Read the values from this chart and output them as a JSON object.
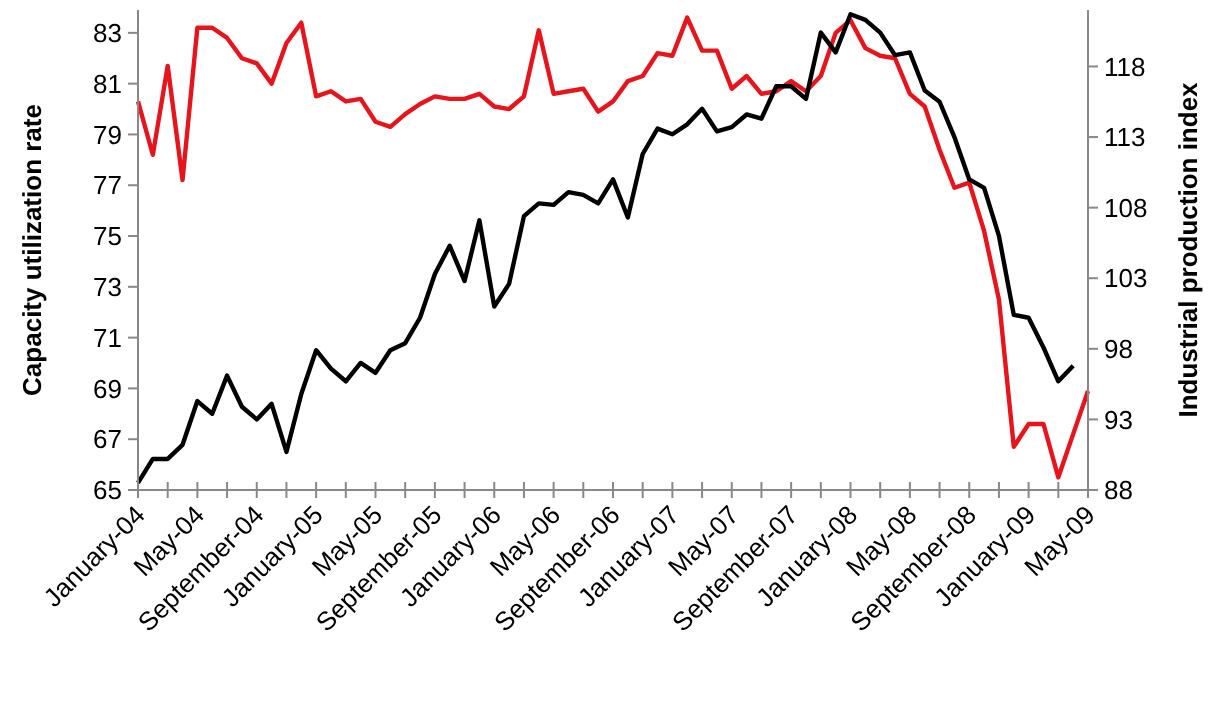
{
  "chart_data": {
    "type": "line",
    "ylabel": "Capacity utilization rate",
    "y2label": "Industrial production index",
    "categories": [
      "January-04",
      null,
      null,
      null,
      "May-04",
      null,
      null,
      null,
      "September-04",
      null,
      null,
      null,
      "January-05",
      null,
      null,
      null,
      "May-05",
      null,
      null,
      null,
      "September-05",
      null,
      null,
      null,
      "January-06",
      null,
      null,
      null,
      "May-06",
      null,
      null,
      null,
      "September-06",
      null,
      null,
      null,
      "January-07",
      null,
      null,
      null,
      "May-07",
      null,
      null,
      null,
      "September-07",
      null,
      null,
      null,
      "January-08",
      null,
      null,
      null,
      "May-08",
      null,
      null,
      null,
      "September-08",
      null,
      null,
      null,
      "January-09",
      null,
      null,
      null,
      "May-09"
    ],
    "series": [
      {
        "color": "#e8141c",
        "values": [
          80.3,
          78.2,
          81.7,
          77.2,
          83.2,
          83.2,
          82.8,
          82.0,
          81.8,
          81.0,
          82.6,
          83.4,
          80.5,
          80.7,
          80.3,
          80.4,
          79.5,
          79.3,
          79.8,
          80.2,
          80.5,
          80.4,
          80.4,
          80.6,
          80.1,
          80.0,
          80.5,
          83.1,
          80.6,
          80.7,
          80.8,
          79.9,
          80.3,
          81.1,
          81.3,
          82.2,
          82.1,
          83.6,
          82.3,
          82.3,
          80.8,
          81.3,
          80.6,
          80.7,
          81.1,
          80.7,
          81.3,
          83.0,
          83.5,
          82.4,
          82.1,
          82.0,
          80.6,
          80.1,
          78.4,
          76.9,
          77.1,
          75.2,
          72.5,
          66.7,
          67.6,
          67.6,
          65.5,
          67.2,
          68.9
        ]
      },
      {
        "color": "#000000",
        "axis": "y2",
        "values": [
          88.5,
          90.2,
          90.2,
          91.2,
          94.3,
          93.4,
          96.1,
          93.9,
          93.0,
          94.1,
          90.7,
          94.8,
          97.9,
          96.6,
          95.7,
          97.0,
          96.3,
          97.9,
          98.4,
          100.2,
          103.3,
          105.3,
          102.8,
          107.1,
          101.0,
          102.6,
          107.4,
          108.3,
          108.2,
          109.1,
          108.9,
          108.3,
          110.0,
          107.3,
          111.8,
          113.6,
          113.2,
          113.9,
          115.0,
          113.4,
          113.7,
          114.6,
          114.3,
          116.6,
          116.6,
          115.7,
          120.4,
          119.0,
          121.7,
          121.3,
          120.4,
          118.8,
          119.0,
          116.3,
          115.5,
          113.0,
          110.0,
          109.4,
          106.0,
          100.4,
          100.2,
          98.1,
          95.7,
          96.8,
          null
        ]
      }
    ],
    "ylim": [
      65,
      83.9
    ],
    "yticks": [
      65,
      67,
      69,
      71,
      73,
      75,
      77,
      79,
      81,
      83
    ],
    "y2lim": [
      88,
      122
    ],
    "y2ticks": [
      88,
      93,
      98,
      103,
      108,
      113,
      118
    ],
    "grid": false,
    "marker": "none",
    "line_style": "solid"
  }
}
